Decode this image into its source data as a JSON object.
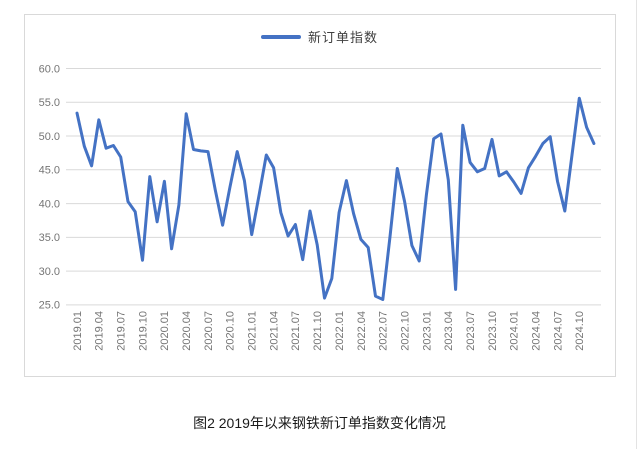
{
  "page": {
    "caption": "图2 2019年以来钢铁新订单指数变化情况"
  },
  "chart_data": {
    "type": "line",
    "title": "图2 2019年以来钢铁新订单指数变化情况",
    "legend": "新订单指数",
    "xlabel": "",
    "ylabel": "",
    "ylim": [
      25,
      60
    ],
    "y_tick_labels": [
      "60.0",
      "55.0",
      "50.0",
      "45.0",
      "40.0",
      "35.0",
      "30.0",
      "25.0"
    ],
    "y_tick_values": [
      60,
      55,
      50,
      45,
      40,
      35,
      30,
      25
    ],
    "x_tick_interval": 3,
    "grid": "horizontal",
    "legend_position": "top-center",
    "x": [
      "2019.01",
      "2019.02",
      "2019.03",
      "2019.04",
      "2019.05",
      "2019.06",
      "2019.07",
      "2019.08",
      "2019.09",
      "2019.10",
      "2019.11",
      "2019.12",
      "2020.01",
      "2020.02",
      "2020.03",
      "2020.04",
      "2020.05",
      "2020.06",
      "2020.07",
      "2020.08",
      "2020.09",
      "2020.10",
      "2020.11",
      "2020.12",
      "2021.01",
      "2021.02",
      "2021.03",
      "2021.04",
      "2021.05",
      "2021.06",
      "2021.07",
      "2021.08",
      "2021.09",
      "2021.10",
      "2021.11",
      "2021.12",
      "2022.01",
      "2022.02",
      "2022.03",
      "2022.04",
      "2022.05",
      "2022.06",
      "2022.07",
      "2022.08",
      "2022.09",
      "2022.10",
      "2022.11",
      "2022.12",
      "2023.01",
      "2023.02",
      "2023.03",
      "2023.04",
      "2023.05",
      "2023.06",
      "2023.07",
      "2023.08",
      "2023.09",
      "2023.10",
      "2023.11",
      "2023.12",
      "2024.01",
      "2024.02",
      "2024.03",
      "2024.04",
      "2024.05",
      "2024.06",
      "2024.07",
      "2024.08",
      "2024.09",
      "2024.10",
      "2024.11",
      "2024.12"
    ],
    "values": [
      53.4,
      48.5,
      45.6,
      52.4,
      48.2,
      48.6,
      46.9,
      40.3,
      38.8,
      31.6,
      44.0,
      37.3,
      43.3,
      33.3,
      39.8,
      53.3,
      48.0,
      47.8,
      47.7,
      42.0,
      36.8,
      42.4,
      47.7,
      43.4,
      35.4,
      41.2,
      47.2,
      45.3,
      38.7,
      35.2,
      36.9,
      31.7,
      38.9,
      33.9,
      26.0,
      28.9,
      38.7,
      43.4,
      38.5,
      34.7,
      33.5,
      26.3,
      25.8,
      35.1,
      45.2,
      40.3,
      33.8,
      31.5,
      41.3,
      49.6,
      50.3,
      43.5,
      27.3,
      51.6,
      46.1,
      44.7,
      45.2,
      49.5,
      44.1,
      44.7,
      43.2,
      41.5,
      45.3,
      47.0,
      48.9,
      49.9,
      43.3,
      38.9,
      47.2,
      55.6,
      51.3,
      48.9
    ],
    "colors": {
      "line": "#4472c4",
      "grid": "#d9d9d9",
      "axis": "#d9d9d9",
      "tick_text": "#757575",
      "legend_text": "#3f3f3f",
      "border": "#d9d9d9"
    }
  }
}
